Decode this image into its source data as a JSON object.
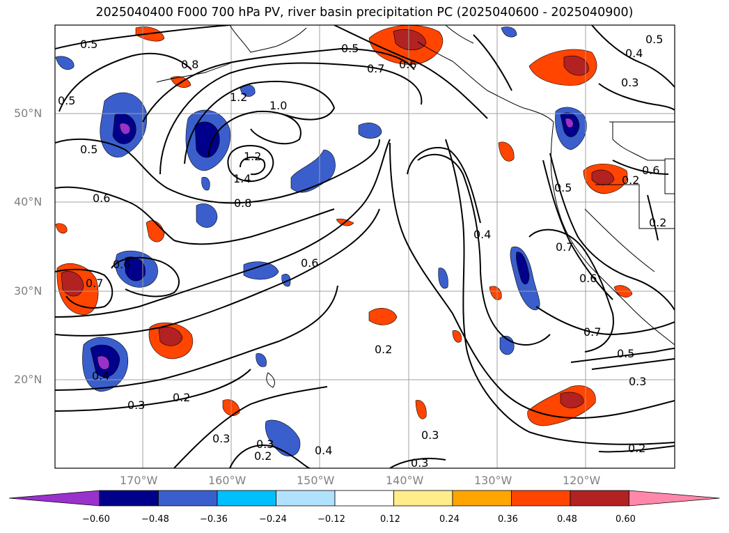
{
  "title": "2025040400 F000 700 hPa PV, river basin precipitation PC (2025040600 - 2025040900)",
  "lat_labels": [
    "50°N",
    "40°N",
    "30°N",
    "20°N"
  ],
  "lon_labels": [
    "170°W",
    "160°W",
    "150°W",
    "140°W",
    "130°W",
    "120°W"
  ],
  "colorbar": {
    "ticks": [
      "−0.60",
      "−0.48",
      "−0.36",
      "−0.24",
      "−0.12",
      "0.12",
      "0.24",
      "0.36",
      "0.48",
      "0.60"
    ],
    "colors": [
      "#9932cc",
      "#00008b",
      "#3a5fcd",
      "#00bfff",
      "#b0e2ff",
      "#ffffff",
      "#ffec8b",
      "#ffa500",
      "#ff4500",
      "#b22222",
      "#ff88aa"
    ]
  },
  "contour_labels": [
    "0.5",
    "0.8",
    "0.5",
    "0.7",
    "1.2",
    "1.0",
    "0.5",
    "0.4",
    "0.3",
    "0.5",
    "1.2",
    "1.4",
    "0.8",
    "0.6",
    "0.5",
    "0.2",
    "0.2",
    "0.6",
    "0.7",
    "0.4",
    "0.6",
    "0.7",
    "0.6",
    "0.2",
    "0.7",
    "0.5",
    "0.4",
    "0.3",
    "0.2",
    "0.3",
    "0.3",
    "0.3",
    "0.2",
    "0.4",
    "0.3",
    "0.3",
    "0.2",
    "0.5",
    "0.6",
    "0.6"
  ]
}
